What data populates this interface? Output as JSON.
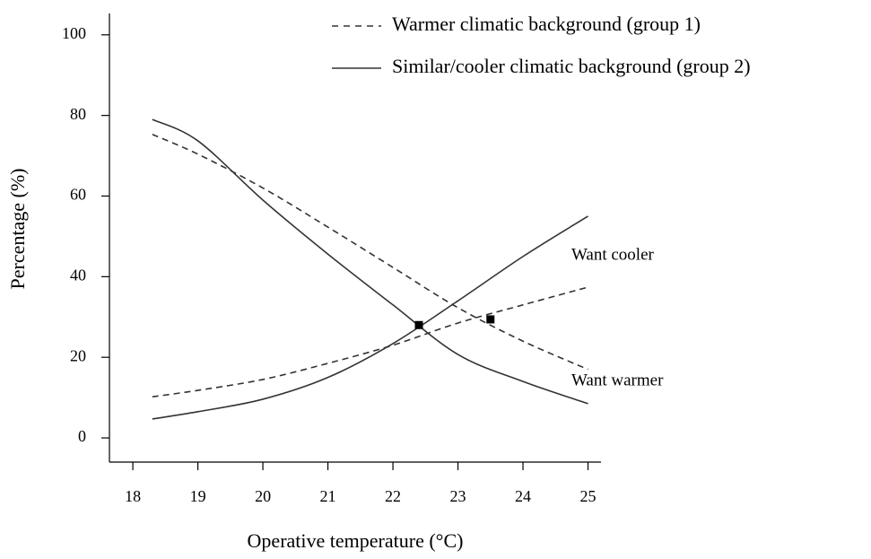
{
  "chart_data": {
    "type": "line",
    "x_label": "Operative temperature (°C)",
    "y_label": "Percentage (%)",
    "xlim": [
      17.64,
      25.2
    ],
    "ylim": [
      -6,
      105.3
    ],
    "xticks": [
      18,
      19,
      20,
      21,
      22,
      23,
      24,
      25
    ],
    "yticks": [
      0,
      20,
      40,
      60,
      80,
      100
    ],
    "x": [
      18.3,
      19,
      20,
      21,
      22,
      23,
      24,
      25
    ],
    "series": [
      {
        "name": "Warmer climatic background (group 1)",
        "color": "#333333",
        "dashed": true,
        "curves": [
          {
            "values": [
              75.3,
              70.4,
              62,
              52.3,
              42.3,
              32.3,
              24,
              17
            ]
          },
          {
            "values": [
              10.2,
              11.8,
              14.5,
              18.5,
              23,
              28.5,
              33,
              37.4
            ]
          }
        ]
      },
      {
        "name": "Similar/cooler climatic background (group 2)",
        "color": "#333333",
        "dashed": false,
        "curves": [
          {
            "values": [
              79,
              73.7,
              59,
              45.6,
              33,
              20.7,
              14,
              8.5
            ]
          },
          {
            "values": [
              4.7,
              6.5,
              9.6,
              15,
              23.4,
              34,
              45,
              55
            ]
          }
        ]
      }
    ],
    "points": [
      {
        "x": 22.4,
        "y": 28
      },
      {
        "x": 23.5,
        "y": 29.4
      }
    ],
    "annotations": [
      "Want cooler",
      "Want warmer"
    ]
  }
}
